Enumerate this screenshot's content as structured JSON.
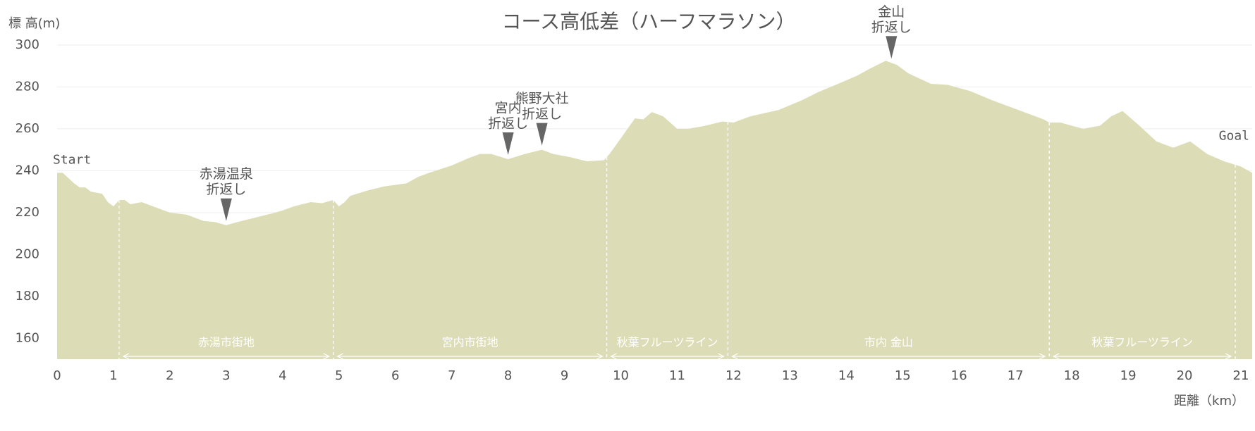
{
  "chart_data": {
    "type": "area",
    "title": "コース高低差（ハーフマラソン）",
    "y_label": "標 高(m)",
    "x_label": "距離（km）",
    "color": "#dcddb6",
    "x": [
      0,
      0.1,
      0.3,
      0.4,
      0.5,
      0.6,
      0.8,
      0.9,
      1.0,
      1.1,
      1.2,
      1.3,
      1.5,
      1.7,
      2.0,
      2.3,
      2.6,
      2.8,
      3.0,
      3.2,
      3.5,
      3.8,
      4.0,
      4.2,
      4.5,
      4.7,
      4.9,
      5.0,
      5.1,
      5.2,
      5.5,
      5.8,
      6.2,
      6.4,
      6.6,
      7.0,
      7.3,
      7.5,
      7.7,
      8.0,
      8.3,
      8.6,
      8.8,
      9.1,
      9.4,
      9.7,
      9.8,
      10.0,
      10.25,
      10.4,
      10.55,
      10.75,
      11.0,
      11.2,
      11.5,
      11.8,
      12.0,
      12.3,
      12.8,
      13.2,
      13.5,
      13.9,
      14.2,
      14.4,
      14.7,
      14.9,
      15.1,
      15.5,
      15.8,
      16.2,
      16.6,
      17.0,
      17.5,
      17.6,
      17.8,
      18.2,
      18.5,
      18.7,
      18.9,
      19.2,
      19.5,
      19.8,
      20.1,
      20.4,
      20.7,
      21.0,
      21.2
    ],
    "values": [
      239,
      239,
      234,
      232,
      232,
      230,
      229,
      225,
      223,
      226,
      226,
      224,
      225,
      223,
      220,
      219,
      216,
      215.5,
      214,
      215.5,
      217.5,
      219.5,
      221,
      223,
      225,
      224.5,
      226,
      223,
      225,
      228,
      230.5,
      232.5,
      234,
      237,
      239,
      242.5,
      246,
      248,
      248,
      245.5,
      248,
      250,
      248,
      246.5,
      244.5,
      245,
      248,
      255.5,
      265,
      264.5,
      268,
      266,
      260,
      260,
      261.5,
      263.5,
      263,
      266,
      269,
      273.5,
      277.5,
      282,
      285.5,
      288.5,
      292.5,
      290.5,
      286.5,
      281.5,
      281,
      278,
      273.5,
      269.5,
      264.5,
      263,
      263,
      260,
      261.5,
      266,
      268.5,
      261.5,
      254,
      251,
      254,
      248,
      244.5,
      242,
      239
    ],
    "xlim": [
      0,
      21.2
    ],
    "ylim": [
      150,
      300
    ],
    "xticks": [
      0,
      1,
      2,
      3,
      4,
      5,
      6,
      7,
      8,
      9,
      10,
      11,
      12,
      13,
      14,
      15,
      16,
      17,
      18,
      19,
      20,
      21
    ],
    "yticks": [
      160,
      180,
      200,
      220,
      240,
      260,
      280,
      300
    ],
    "grid": true,
    "start_label": "Start",
    "goal_label": "Goal",
    "annotations": [
      {
        "x": 3.0,
        "lines": [
          "赤湯温泉",
          "折返し"
        ]
      },
      {
        "x": 8.0,
        "lines": [
          "宮内",
          "折返し"
        ]
      },
      {
        "x": 8.6,
        "lines": [
          "熊野大社",
          "折返し"
        ]
      },
      {
        "x": 14.8,
        "lines": [
          "金山",
          "折返し"
        ]
      }
    ],
    "zones": [
      {
        "name": "赤湯市街地",
        "start": 1.1,
        "end": 4.9
      },
      {
        "name": "宮内市街地",
        "start": 4.9,
        "end": 9.75
      },
      {
        "name": "秋葉フルーツライン",
        "start": 9.75,
        "end": 11.9
      },
      {
        "name": "市内 金山",
        "start": 11.9,
        "end": 17.6
      },
      {
        "name": "秋葉フルーツライン",
        "start": 17.6,
        "end": 20.9
      }
    ]
  }
}
